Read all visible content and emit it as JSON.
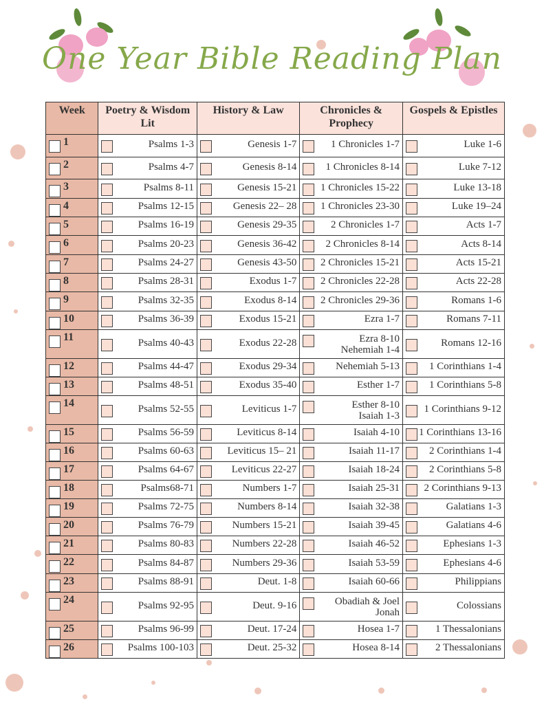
{
  "title": "One Year Bible Reading Plan",
  "headers": [
    "Week",
    "Poetry & Wisdom Lit",
    "History & Law",
    "Chronicles & Prophecy",
    "Gospels & Epistles"
  ],
  "rows": [
    [
      "1",
      "Psalms 1-3",
      "Genesis 1-7",
      "1 Chronicles  1-7",
      "Luke 1-6"
    ],
    [
      "2",
      "Psalms 4-7",
      "Genesis 8-14",
      "1 Chronicles 8-14",
      "Luke 7-12"
    ],
    [
      "3",
      "Psalms 8-11",
      "Genesis 15-21",
      "1 Chronicles 15-22",
      "Luke  13-18"
    ],
    [
      "4",
      "Psalms 12-15",
      "Genesis 22– 28",
      "1 Chronicles 23-30",
      "Luke  19–24"
    ],
    [
      "5",
      "Psalms 16-19",
      "Genesis 29-35",
      "2 Chronicles 1-7",
      "Acts 1-7"
    ],
    [
      "6",
      "Psalms 20-23",
      "Genesis 36-42",
      "2 Chronicles 8-14",
      "Acts 8-14"
    ],
    [
      "7",
      "Psalms 24-27",
      "Genesis 43-50",
      "2 Chronicles 15-21",
      "Acts 15-21"
    ],
    [
      "8",
      "Psalms 28-31",
      "Exodus  1-7",
      "2 Chronicles 22-28",
      "Acts 22-28"
    ],
    [
      "9",
      "Psalms 32-35",
      "Exodus  8-14",
      "2 Chronicles 29-36",
      "Romans  1-6"
    ],
    [
      "10",
      "Psalms 36-39",
      "Exodus 15-21",
      "Ezra 1-7",
      "Romans  7-11"
    ],
    [
      "11",
      "Psalms 40-43",
      "Exodus 22-28",
      "Ezra 8-10\nNehemiah 1-4",
      "Romans 12-16"
    ],
    [
      "12",
      "Psalms 44-47",
      "Exodus 29-34",
      "Nehemiah 5-13",
      "1 Corinthians 1-4"
    ],
    [
      "13",
      "Psalms 48-51",
      "Exodus 35-40",
      "Esther 1-7",
      "1 Corinthians 5-8"
    ],
    [
      "14",
      "Psalms 52-55",
      "Leviticus 1-7",
      "Esther 8-10\nIsaiah 1-3",
      "1 Corinthians 9-12"
    ],
    [
      "15",
      "Psalms 56-59",
      "Leviticus  8-14",
      "Isaiah 4-10",
      "1 Corinthians 13-16"
    ],
    [
      "16",
      "Psalms 60-63",
      "Leviticus 15– 21",
      "Isaiah 11-17",
      "2 Corinthians 1-4"
    ],
    [
      "17",
      "Psalms 64-67",
      "Leviticus 22-27",
      "Isaiah 18-24",
      "2 Corinthians 5-8"
    ],
    [
      "18",
      "Psalms68-71",
      "Numbers 1-7",
      "Isaiah 25-31",
      "2 Corinthians 9-13"
    ],
    [
      "19",
      "Psalms 72-75",
      "Numbers 8-14",
      "Isaiah 32-38",
      "Galatians 1-3"
    ],
    [
      "20",
      "Psalms 76-79",
      "Numbers 15-21",
      "Isaiah 39-45",
      "Galatians 4-6"
    ],
    [
      "21",
      "Psalms 80-83",
      "Numbers  22-28",
      "Isaiah 46-52",
      "Ephesians 1-3"
    ],
    [
      "22",
      "Psalms 84-87",
      "Numbers  29-36",
      "Isaiah 53-59",
      "Ephesians 4-6"
    ],
    [
      "23",
      "Psalms 88-91",
      "Deut. 1-8",
      "Isaiah 60-66",
      "Philippians"
    ],
    [
      "24",
      "Psalms 92-95",
      "Deut. 9-16",
      "Obadiah & Joel\nJonah",
      "Colossians"
    ],
    [
      "25",
      "Psalms 96-99",
      "Deut. 17-24",
      "Hosea 1-7",
      "1 Thessalonians"
    ],
    [
      "26",
      "Psalms 100-103",
      "Deut. 25-32",
      "Hosea 8-14",
      "2 Thessalonians"
    ]
  ],
  "colors": {
    "title": "#86a84a",
    "week_col": "#e8b9a6",
    "header_bg": "#fbe3dc",
    "checkbox_fill": "#fbe0d6"
  }
}
